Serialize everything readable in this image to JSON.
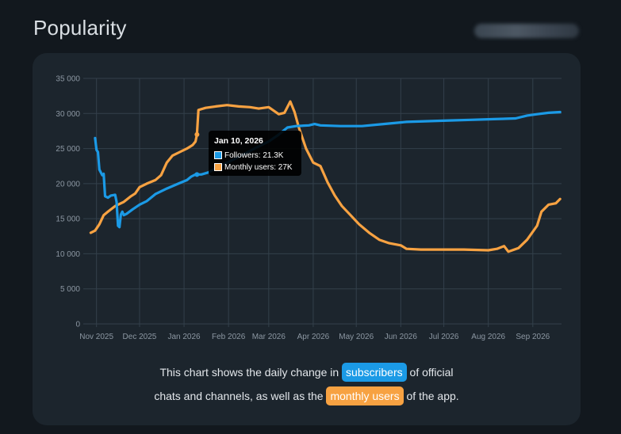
{
  "page": {
    "title": "Popularity"
  },
  "colors": {
    "followers": "#1b9ae6",
    "monthly_users": "#f7a242",
    "grid": "#33404b",
    "tick_text": "#8c97a2"
  },
  "tooltip": {
    "title": "Jan 10, 2026",
    "rows": [
      {
        "label": "Followers: 21.3K"
      },
      {
        "label": "Monthly users: 27K"
      }
    ]
  },
  "caption": {
    "line1_before": "This chart shows the daily change in",
    "subscribers": "subscribers",
    "line1_after": "of official",
    "line2_before": "chats and channels, as well as the",
    "monthly_users": "monthly users",
    "line2_after": "of the app."
  },
  "chart_data": {
    "type": "line",
    "title": "",
    "xlabel": "",
    "ylabel": "",
    "ylim": [
      0,
      35000
    ],
    "xlim": [
      "2025-10-25",
      "2026-09-21"
    ],
    "grid": true,
    "legend": "none",
    "y_ticks": [
      "0",
      "5 000",
      "10 000",
      "15 000",
      "20 000",
      "25 000",
      "30 000",
      "35 000"
    ],
    "x_ticks": [
      {
        "date": "2025-11-01",
        "label": "Nov 2025"
      },
      {
        "date": "2025-12-01",
        "label": "Dec 2025"
      },
      {
        "date": "2026-01-01",
        "label": "Jan 2026"
      },
      {
        "date": "2026-02-01",
        "label": "Feb 2026"
      },
      {
        "date": "2026-03-01",
        "label": "Mar 2026"
      },
      {
        "date": "2026-04-01",
        "label": "Apr 2026"
      },
      {
        "date": "2026-05-01",
        "label": "May 2026"
      },
      {
        "date": "2026-06-01",
        "label": "Jun 2026"
      },
      {
        "date": "2026-07-01",
        "label": "Jul 2026"
      },
      {
        "date": "2026-08-01",
        "label": "Aug 2026"
      },
      {
        "date": "2026-09-01",
        "label": "Sep 2026"
      }
    ],
    "series": [
      {
        "name": "Followers",
        "points": [
          [
            "2025-10-31",
            26500
          ],
          [
            "2025-11-01",
            24800
          ],
          [
            "2025-11-02",
            24500
          ],
          [
            "2025-11-03",
            22000
          ],
          [
            "2025-11-05",
            21200
          ],
          [
            "2025-11-06",
            21400
          ],
          [
            "2025-11-07",
            18200
          ],
          [
            "2025-11-09",
            18000
          ],
          [
            "2025-11-11",
            18300
          ],
          [
            "2025-11-14",
            18400
          ],
          [
            "2025-11-15",
            17400
          ],
          [
            "2025-11-16",
            14000
          ],
          [
            "2025-11-17",
            13800
          ],
          [
            "2025-11-18",
            15600
          ],
          [
            "2025-11-19",
            16000
          ],
          [
            "2025-11-20",
            15500
          ],
          [
            "2025-11-22",
            15700
          ],
          [
            "2025-11-26",
            16300
          ],
          [
            "2025-12-01",
            17000
          ],
          [
            "2025-12-06",
            17500
          ],
          [
            "2025-12-12",
            18500
          ],
          [
            "2025-12-20",
            19300
          ],
          [
            "2025-12-28",
            20000
          ],
          [
            "2026-01-03",
            20500
          ],
          [
            "2026-01-06",
            21000
          ],
          [
            "2026-01-09",
            21300
          ],
          [
            "2026-01-13",
            21300
          ],
          [
            "2026-01-18",
            21600
          ],
          [
            "2026-01-24",
            22300
          ],
          [
            "2026-01-31",
            23000
          ],
          [
            "2026-02-10",
            24000
          ],
          [
            "2026-02-20",
            25100
          ],
          [
            "2026-03-01",
            26000
          ],
          [
            "2026-03-08",
            27000
          ],
          [
            "2026-03-14",
            28000
          ],
          [
            "2026-03-20",
            28200
          ],
          [
            "2026-03-29",
            28300
          ],
          [
            "2026-04-02",
            28500
          ],
          [
            "2026-04-06",
            28300
          ],
          [
            "2026-04-20",
            28200
          ],
          [
            "2026-05-05",
            28200
          ],
          [
            "2026-05-20",
            28500
          ],
          [
            "2026-06-05",
            28800
          ],
          [
            "2026-06-20",
            28900
          ],
          [
            "2026-07-05",
            29000
          ],
          [
            "2026-07-20",
            29100
          ],
          [
            "2026-08-05",
            29200
          ],
          [
            "2026-08-20",
            29300
          ],
          [
            "2026-08-28",
            29700
          ],
          [
            "2026-09-04",
            29900
          ],
          [
            "2026-09-12",
            30100
          ],
          [
            "2026-09-20",
            30200
          ]
        ]
      },
      {
        "name": "Monthly users",
        "points": [
          [
            "2025-10-28",
            13000
          ],
          [
            "2025-10-31",
            13300
          ],
          [
            "2025-11-03",
            14200
          ],
          [
            "2025-11-06",
            15500
          ],
          [
            "2025-11-09",
            16000
          ],
          [
            "2025-11-14",
            16800
          ],
          [
            "2025-11-20",
            17400
          ],
          [
            "2025-11-25",
            18200
          ],
          [
            "2025-11-28",
            18600
          ],
          [
            "2025-12-01",
            19500
          ],
          [
            "2025-12-06",
            20000
          ],
          [
            "2025-12-12",
            20500
          ],
          [
            "2025-12-16",
            21200
          ],
          [
            "2025-12-20",
            23000
          ],
          [
            "2025-12-24",
            24000
          ],
          [
            "2025-12-29",
            24500
          ],
          [
            "2026-01-03",
            25000
          ],
          [
            "2026-01-07",
            25500
          ],
          [
            "2026-01-09",
            26000
          ],
          [
            "2026-01-10",
            27000
          ],
          [
            "2026-01-11",
            30500
          ],
          [
            "2026-01-16",
            30800
          ],
          [
            "2026-01-23",
            31000
          ],
          [
            "2026-01-31",
            31200
          ],
          [
            "2026-02-08",
            31000
          ],
          [
            "2026-02-16",
            30900
          ],
          [
            "2026-02-22",
            30700
          ],
          [
            "2026-03-01",
            30900
          ],
          [
            "2026-03-08",
            29900
          ],
          [
            "2026-03-12",
            30100
          ],
          [
            "2026-03-16",
            31700
          ],
          [
            "2026-03-19",
            30200
          ],
          [
            "2026-03-22",
            28000
          ],
          [
            "2026-03-27",
            25000
          ],
          [
            "2026-04-01",
            23000
          ],
          [
            "2026-04-06",
            22500
          ],
          [
            "2026-04-11",
            20200
          ],
          [
            "2026-04-16",
            18300
          ],
          [
            "2026-04-21",
            16800
          ],
          [
            "2026-04-27",
            15500
          ],
          [
            "2026-05-03",
            14200
          ],
          [
            "2026-05-10",
            13000
          ],
          [
            "2026-05-17",
            12000
          ],
          [
            "2026-05-24",
            11500
          ],
          [
            "2026-06-01",
            11200
          ],
          [
            "2026-06-05",
            10700
          ],
          [
            "2026-06-15",
            10600
          ],
          [
            "2026-07-01",
            10600
          ],
          [
            "2026-07-15",
            10600
          ],
          [
            "2026-08-01",
            10500
          ],
          [
            "2026-08-07",
            10700
          ],
          [
            "2026-08-12",
            11100
          ],
          [
            "2026-08-15",
            10300
          ],
          [
            "2026-08-22",
            10800
          ],
          [
            "2026-08-28",
            12000
          ],
          [
            "2026-09-04",
            14000
          ],
          [
            "2026-09-07",
            16000
          ],
          [
            "2026-09-12",
            17000
          ],
          [
            "2026-09-17",
            17200
          ],
          [
            "2026-09-20",
            17800
          ]
        ]
      }
    ],
    "tooltip_point": {
      "x": "2026-01-10",
      "followers": 21300,
      "monthly_users": 27000
    }
  }
}
